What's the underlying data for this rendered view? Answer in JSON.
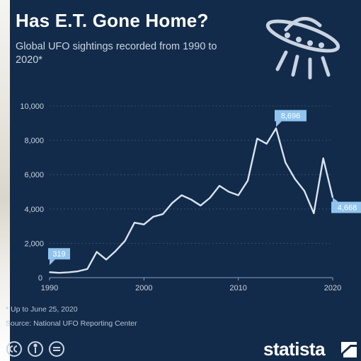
{
  "header": {
    "title": "Has E.T. Gone Home?",
    "subtitle": "Global UFO sightings recorded from 1990 to 2020*"
  },
  "footer": {
    "footnote": "* Up to June 25, 2020",
    "source": "Source: National UFO Reporting Center",
    "brand": "statista"
  },
  "icons": {
    "illustration": "ufo-icon",
    "license": [
      "creative-commons-icon",
      "attribution-icon",
      "equal-icon"
    ],
    "brand_mark": "statista-logo-icon"
  },
  "colors": {
    "background": "#132b4a",
    "line": "#d8e4f0",
    "callout": "#8fc4ee",
    "grid": "#3a5576"
  },
  "chart_data": {
    "type": "line",
    "title": "Has E.T. Gone Home?",
    "subtitle": "Global UFO sightings recorded from 1990 to 2020*",
    "x": [
      1990,
      1991,
      1992,
      1993,
      1994,
      1995,
      1996,
      1997,
      1998,
      1999,
      2000,
      2001,
      2002,
      2003,
      2004,
      2005,
      2006,
      2007,
      2008,
      2009,
      2010,
      2011,
      2012,
      2013,
      2014,
      2015,
      2016,
      2017,
      2018,
      2019,
      2020
    ],
    "series": [
      {
        "values": [
          319,
          280,
          310,
          370,
          500,
          1500,
          1050,
          1550,
          2150,
          3200,
          3100,
          3550,
          3700,
          4350,
          4800,
          4550,
          4200,
          4650,
          5350,
          5000,
          4800,
          5650,
          8100,
          7800,
          8696,
          6700,
          5750,
          5050,
          3750,
          6950,
          4668
        ]
      }
    ],
    "xticks": [
      "1990",
      "2000",
      "2010",
      "2020"
    ],
    "yticks": [
      "0",
      "2,000",
      "4,000",
      "6,000",
      "8,000",
      "10,000"
    ],
    "xlim": [
      1990,
      2020
    ],
    "ylim": [
      0,
      10000
    ],
    "grid": true,
    "annotations": [
      {
        "x": 1990,
        "label": "319"
      },
      {
        "x": 2014,
        "label": "8,696"
      },
      {
        "x": 2020,
        "label": "4,668"
      }
    ],
    "xlabel": "",
    "ylabel": ""
  }
}
